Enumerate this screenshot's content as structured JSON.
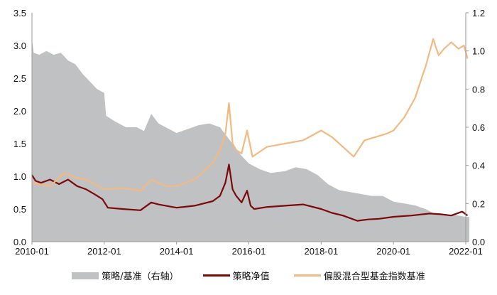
{
  "chart_data": {
    "type": "line",
    "title": "",
    "x_ticks": [
      "2010-01",
      "2012-01",
      "2014-01",
      "2016-01",
      "2018-01",
      "2020-01",
      "2022-01"
    ],
    "xlim": [
      2010.0,
      2022.1
    ],
    "y_left": {
      "ylim": [
        0,
        3.5
      ],
      "ticks": [
        "0.0",
        "0.5",
        "1.0",
        "1.5",
        "2.0",
        "2.5",
        "3.0",
        "3.5"
      ]
    },
    "y_right": {
      "ylim": [
        0,
        1.2
      ],
      "ticks": [
        "0.0",
        "0.2",
        "0.4",
        "0.6",
        "0.8",
        "1.0",
        "1.2"
      ]
    },
    "colors": {
      "ratio": "#c0c1c3",
      "strategy": "#7a0a0a",
      "benchmark": "#f2b983"
    },
    "series": [
      {
        "name": "策略/基准（右轴）",
        "type": "area",
        "axis": "right",
        "x": [
          2010.0,
          2010.05,
          2010.2,
          2010.4,
          2010.6,
          2010.8,
          2011.0,
          2011.2,
          2011.4,
          2011.6,
          2011.8,
          2012.0,
          2012.05,
          2012.3,
          2012.6,
          2012.9,
          2013.1,
          2013.3,
          2013.5,
          2013.7,
          2014.0,
          2014.3,
          2014.6,
          2014.9,
          2015.2,
          2015.4,
          2015.6,
          2015.8,
          2016.0,
          2016.3,
          2016.6,
          2017.0,
          2017.3,
          2017.6,
          2017.9,
          2018.2,
          2018.5,
          2018.8,
          2019.1,
          2019.4,
          2019.7,
          2020.0,
          2020.3,
          2020.6,
          2020.9,
          2021.1,
          2021.4,
          2021.7,
          2022.0,
          2022.1
        ],
        "values": [
          1.06,
          0.99,
          0.98,
          1.0,
          0.98,
          0.99,
          0.95,
          0.93,
          0.88,
          0.84,
          0.8,
          0.78,
          0.66,
          0.63,
          0.6,
          0.6,
          0.58,
          0.67,
          0.62,
          0.6,
          0.57,
          0.59,
          0.61,
          0.62,
          0.6,
          0.55,
          0.5,
          0.45,
          0.41,
          0.38,
          0.36,
          0.37,
          0.39,
          0.38,
          0.35,
          0.3,
          0.27,
          0.26,
          0.25,
          0.24,
          0.24,
          0.21,
          0.2,
          0.19,
          0.17,
          0.15,
          0.14,
          0.14,
          0.13,
          0.13
        ]
      },
      {
        "name": "策略净值",
        "type": "line",
        "axis": "left",
        "x": [
          2010.0,
          2010.1,
          2010.25,
          2010.5,
          2010.75,
          2011.0,
          2011.25,
          2011.5,
          2011.75,
          2011.95,
          2012.1,
          2012.5,
          2013.0,
          2013.3,
          2013.5,
          2013.7,
          2014.0,
          2014.5,
          2015.0,
          2015.2,
          2015.35,
          2015.45,
          2015.55,
          2015.65,
          2015.8,
          2015.95,
          2016.05,
          2016.15,
          2016.5,
          2017.0,
          2017.5,
          2018.0,
          2018.3,
          2018.6,
          2019.0,
          2019.3,
          2019.6,
          2020.0,
          2020.5,
          2021.0,
          2021.3,
          2021.6,
          2021.9,
          2022.05
        ],
        "values": [
          1.02,
          0.93,
          0.9,
          0.95,
          0.88,
          0.95,
          0.85,
          0.8,
          0.72,
          0.65,
          0.52,
          0.5,
          0.48,
          0.6,
          0.57,
          0.55,
          0.52,
          0.55,
          0.62,
          0.7,
          0.9,
          1.18,
          0.8,
          0.7,
          0.6,
          0.78,
          0.55,
          0.5,
          0.53,
          0.55,
          0.57,
          0.5,
          0.44,
          0.4,
          0.32,
          0.34,
          0.35,
          0.38,
          0.4,
          0.43,
          0.42,
          0.4,
          0.46,
          0.4
        ]
      },
      {
        "name": "偏股混合型基金指数基准",
        "type": "line",
        "axis": "left",
        "x": [
          2010.0,
          2010.2,
          2010.5,
          2010.9,
          2011.2,
          2011.5,
          2012.0,
          2012.5,
          2013.0,
          2013.3,
          2013.5,
          2013.7,
          2014.0,
          2014.5,
          2015.0,
          2015.2,
          2015.35,
          2015.45,
          2015.55,
          2015.65,
          2015.8,
          2015.95,
          2016.1,
          2016.5,
          2017.0,
          2017.5,
          2018.0,
          2018.3,
          2018.6,
          2018.9,
          2019.2,
          2019.5,
          2019.8,
          2020.0,
          2020.3,
          2020.6,
          2020.9,
          2021.1,
          2021.25,
          2021.4,
          2021.6,
          2021.8,
          2021.95,
          2022.05
        ],
        "values": [
          0.9,
          0.88,
          0.85,
          1.05,
          0.98,
          0.95,
          0.8,
          0.82,
          0.78,
          0.95,
          0.9,
          0.85,
          0.85,
          0.95,
          1.2,
          1.4,
          1.65,
          2.12,
          1.5,
          1.4,
          1.35,
          1.7,
          1.3,
          1.45,
          1.5,
          1.55,
          1.7,
          1.6,
          1.45,
          1.3,
          1.55,
          1.6,
          1.65,
          1.7,
          1.9,
          2.2,
          2.7,
          3.1,
          2.85,
          2.95,
          3.05,
          2.95,
          3.0,
          2.8
        ]
      }
    ]
  }
}
